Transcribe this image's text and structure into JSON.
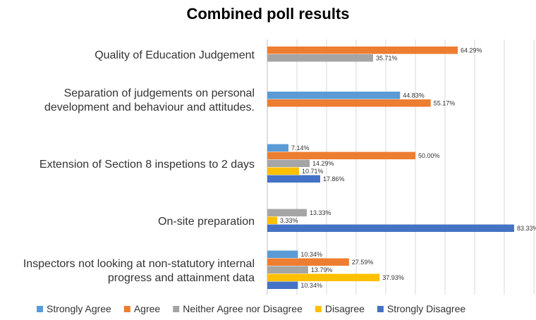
{
  "chart_data": {
    "type": "bar",
    "orientation": "horizontal",
    "title": "Combined poll results",
    "xlim": [
      0,
      90
    ],
    "grid": true,
    "legend_position": "bottom",
    "value_suffix": "%",
    "categories": [
      {
        "lines": [
          "Quality of Education Judgement"
        ]
      },
      {
        "lines": [
          "Separation of judgements on personal",
          "development and behaviour and attitudes."
        ]
      },
      {
        "lines": [
          "Extension of Section 8 inspetions to 2 days"
        ]
      },
      {
        "lines": [
          "On-site preparation"
        ]
      },
      {
        "lines": [
          "Inspectors not looking at non-statutory internal",
          "progress and attainment data"
        ]
      }
    ],
    "series": [
      {
        "name": "Strongly Agree",
        "color": "#5B9BD5",
        "values": [
          null,
          44.83,
          7.14,
          null,
          10.34
        ]
      },
      {
        "name": "Agree",
        "color": "#ED7D31",
        "values": [
          64.29,
          55.17,
          50.0,
          null,
          27.59
        ]
      },
      {
        "name": "Neither Agree nor Disagree",
        "color": "#A5A5A5",
        "values": [
          35.71,
          null,
          14.29,
          13.33,
          13.79
        ]
      },
      {
        "name": "Disagree",
        "color": "#FFC000",
        "values": [
          null,
          null,
          10.71,
          3.33,
          37.93
        ]
      },
      {
        "name": "Strongly Disagree",
        "color": "#4472C4",
        "values": [
          null,
          null,
          17.86,
          83.33,
          10.34
        ]
      }
    ]
  }
}
